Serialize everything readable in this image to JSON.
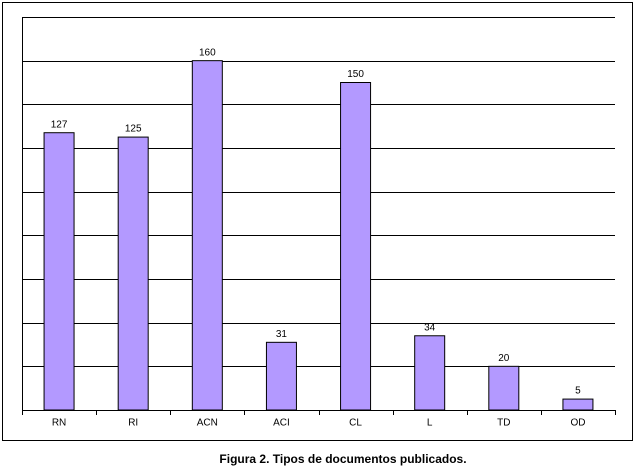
{
  "chart_data": {
    "type": "bar",
    "title": "Figura 2. Tipos de documentos publicados.",
    "categories": [
      "RN",
      "RI",
      "ACN",
      "ACI",
      "CL",
      "L",
      "TD",
      "OD"
    ],
    "values": [
      127,
      125,
      160,
      31,
      150,
      34,
      20,
      5
    ],
    "color": "#b399ff",
    "ylim": [
      0,
      180
    ],
    "yticks": [
      0,
      20,
      40,
      60,
      80,
      100,
      120,
      140,
      160,
      180
    ],
    "grid": true
  }
}
